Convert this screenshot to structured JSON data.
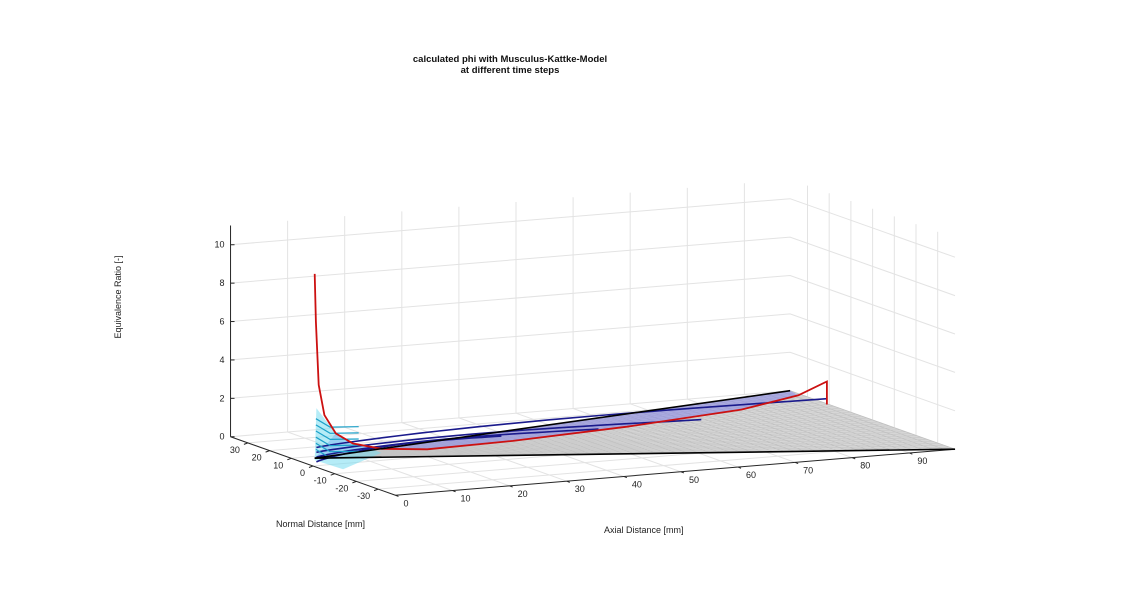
{
  "chart_data": {
    "type": "surface3d",
    "title": [
      "calculated phi with Musculus-Kattke-Model",
      "at different time steps"
    ],
    "xlabel": "Axial Distance [mm]",
    "ylabel": "Normal Distance [mm]",
    "zlabel": "Equivalence Ratio [-]",
    "xlim": [
      0,
      98
    ],
    "ylim": [
      -38,
      38
    ],
    "zlim": [
      0,
      11
    ],
    "xticks": [
      "0",
      "10",
      "20",
      "30",
      "40",
      "50",
      "60",
      "70",
      "80",
      "90"
    ],
    "yticks": [
      "-30",
      "-20",
      "-10",
      "0",
      "10",
      "20",
      "30"
    ],
    "zticks": [
      "0",
      "2",
      "4",
      "6",
      "8",
      "10"
    ],
    "grid": true,
    "series": [
      {
        "color": "#cc1111",
        "x": [
          0.3,
          0.5,
          1,
          2,
          4,
          7,
          12,
          20,
          35,
          55,
          75,
          85,
          90,
          90,
          90
        ],
        "z": [
          10,
          7.5,
          4.2,
          2.6,
          1.6,
          1.0,
          0.6,
          0.38,
          0.45,
          0.7,
          1.1,
          1.6,
          2.2,
          1.0,
          2.0
        ]
      },
      {
        "color": "#1a1a8c",
        "tip_x": 33,
        "tip_z": 0.75
      },
      {
        "color": "#1a1a8c",
        "tip_x": 50,
        "tip_z": 0.7
      },
      {
        "color": "#1a1a8c",
        "tip_x": 68,
        "tip_z": 0.75
      },
      {
        "color": "#1a1a8c",
        "tip_x": 90,
        "tip_z": 1.3
      }
    ]
  }
}
